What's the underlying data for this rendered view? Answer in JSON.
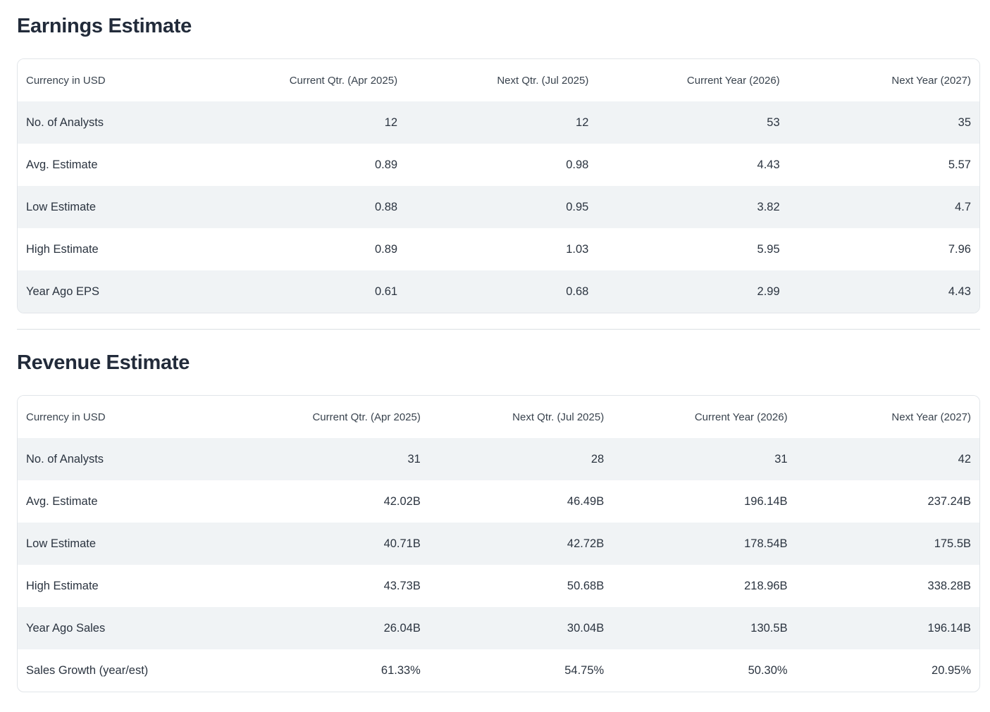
{
  "colors": {
    "title": "#222b3a",
    "body_text": "#2b3440",
    "header_text": "#39434e",
    "row_stripe": "#f0f3f5",
    "table_border": "#e1e5e9",
    "section_divider": "#dbdfe3",
    "background": "#ffffff"
  },
  "sections": [
    {
      "title": "Earnings Estimate",
      "columns": [
        "Currency in USD",
        "Current Qtr. (Apr 2025)",
        "Next Qtr. (Jul 2025)",
        "Current Year (2026)",
        "Next Year (2027)"
      ],
      "rows": [
        {
          "label": "No. of Analysts",
          "values": [
            "12",
            "12",
            "53",
            "35"
          ]
        },
        {
          "label": "Avg. Estimate",
          "values": [
            "0.89",
            "0.98",
            "4.43",
            "5.57"
          ]
        },
        {
          "label": "Low Estimate",
          "values": [
            "0.88",
            "0.95",
            "3.82",
            "4.7"
          ]
        },
        {
          "label": "High Estimate",
          "values": [
            "0.89",
            "1.03",
            "5.95",
            "7.96"
          ]
        },
        {
          "label": "Year Ago EPS",
          "values": [
            "0.61",
            "0.68",
            "2.99",
            "4.43"
          ]
        }
      ]
    },
    {
      "title": "Revenue Estimate",
      "columns": [
        "Currency in USD",
        "Current Qtr. (Apr 2025)",
        "Next Qtr. (Jul 2025)",
        "Current Year (2026)",
        "Next Year (2027)"
      ],
      "rows": [
        {
          "label": "No. of Analysts",
          "values": [
            "31",
            "28",
            "31",
            "42"
          ]
        },
        {
          "label": "Avg. Estimate",
          "values": [
            "42.02B",
            "46.49B",
            "196.14B",
            "237.24B"
          ]
        },
        {
          "label": "Low Estimate",
          "values": [
            "40.71B",
            "42.72B",
            "178.54B",
            "175.5B"
          ]
        },
        {
          "label": "High Estimate",
          "values": [
            "43.73B",
            "50.68B",
            "218.96B",
            "338.28B"
          ]
        },
        {
          "label": "Year Ago Sales",
          "values": [
            "26.04B",
            "30.04B",
            "130.5B",
            "196.14B"
          ]
        },
        {
          "label": "Sales Growth (year/est)",
          "values": [
            "61.33%",
            "54.75%",
            "50.30%",
            "20.95%"
          ]
        }
      ]
    }
  ]
}
